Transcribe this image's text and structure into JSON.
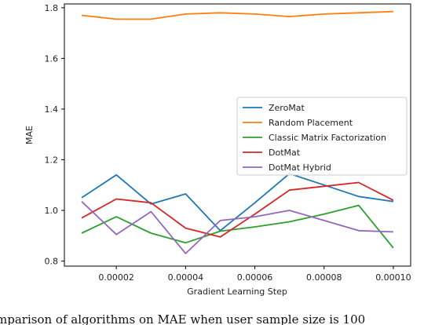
{
  "chart_data": {
    "type": "line",
    "xlabel": "Gradient Learning Step",
    "ylabel": "MAE",
    "xlim": [
      5e-06,
      0.000105
    ],
    "ylim": [
      0.78,
      1.815
    ],
    "x": [
      1e-05,
      2e-05,
      3e-05,
      4e-05,
      5e-05,
      6e-05,
      7e-05,
      8e-05,
      9e-05,
      0.0001
    ],
    "xticks": [
      2e-05,
      4e-05,
      6e-05,
      8e-05,
      0.0001
    ],
    "xtick_labels": [
      "0.00002",
      "0.00004",
      "0.00006",
      "0.00008",
      "0.00010"
    ],
    "yticks": [
      0.8,
      1.0,
      1.2,
      1.4,
      1.6,
      1.8
    ],
    "ytick_labels": [
      "0.8",
      "1.0",
      "1.2",
      "1.4",
      "1.6",
      "1.8"
    ],
    "grid": false,
    "legend_position": "center-right",
    "series": [
      {
        "name": "ZeroMat",
        "color": "#1f77b4",
        "values": [
          1.05,
          1.14,
          1.025,
          1.065,
          0.92,
          1.03,
          1.145,
          1.1,
          1.055,
          1.035
        ]
      },
      {
        "name": "Random Placement",
        "color": "#ff7f0e",
        "values": [
          1.77,
          1.755,
          1.755,
          1.775,
          1.78,
          1.775,
          1.765,
          1.775,
          1.78,
          1.785
        ]
      },
      {
        "name": "Classic Matrix Factorization",
        "color": "#2ca02c",
        "values": [
          0.91,
          0.975,
          0.91,
          0.872,
          0.918,
          0.935,
          0.955,
          0.985,
          1.02,
          0.852
        ]
      },
      {
        "name": "DotMat",
        "color": "#d62728",
        "values": [
          0.97,
          1.045,
          1.03,
          0.93,
          0.895,
          0.985,
          1.08,
          1.095,
          1.11,
          1.04
        ]
      },
      {
        "name": "DotMat Hybrid",
        "color": "#9467bd",
        "values": [
          1.035,
          0.905,
          0.995,
          0.83,
          0.96,
          0.975,
          1.0,
          0.96,
          0.92,
          0.915
        ]
      }
    ]
  },
  "caption": "omparison of algorithms on MAE when user sample size is 100"
}
